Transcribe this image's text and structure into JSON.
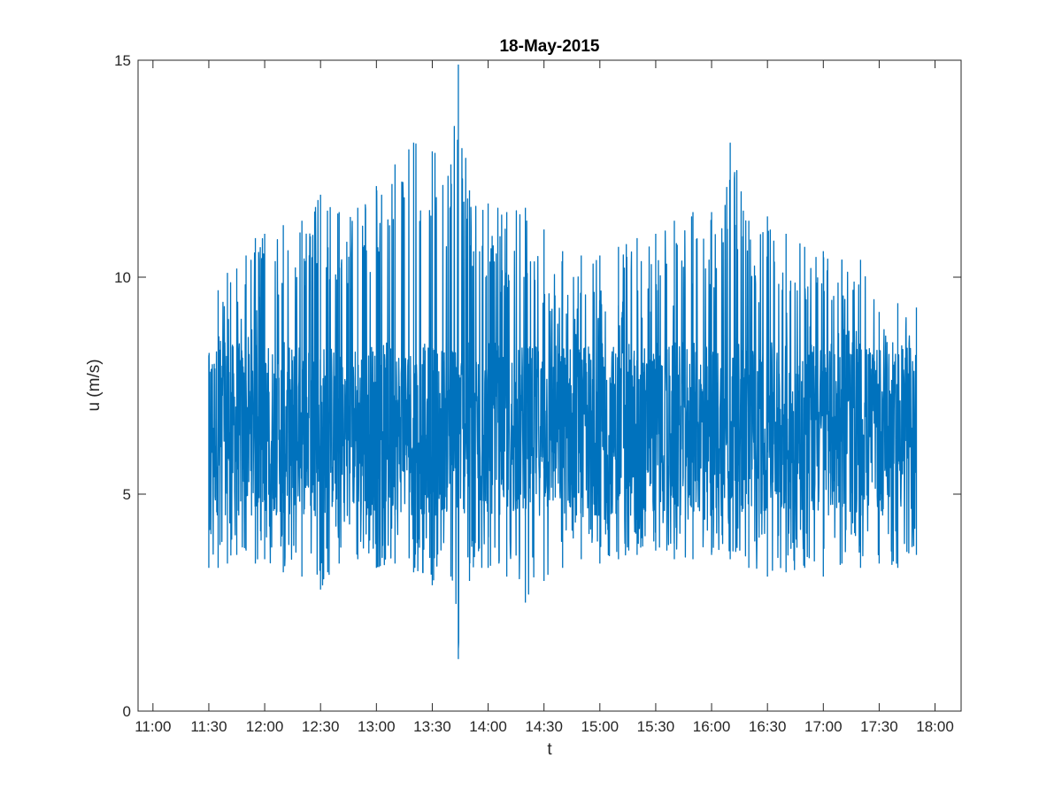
{
  "chart_data": {
    "type": "line",
    "title": "18-May-2015",
    "xlabel": "t",
    "ylabel": "u (m/s)",
    "xlim": [
      "10:52",
      "18:14"
    ],
    "ylim": [
      0,
      15
    ],
    "x_ticks": [
      "11:00",
      "11:30",
      "12:00",
      "12:30",
      "13:00",
      "13:30",
      "14:00",
      "14:30",
      "15:00",
      "15:30",
      "16:00",
      "16:30",
      "17:00",
      "17:30",
      "18:00"
    ],
    "y_ticks": [
      0,
      5,
      10,
      15
    ],
    "grid": false,
    "legend": "none",
    "series": [
      {
        "color": "#0072BD",
        "x_start": "11:30",
        "x_end": "17:50",
        "x": [
          "11:30",
          "11:35",
          "11:40",
          "11:45",
          "11:50",
          "11:55",
          "12:00",
          "12:10",
          "12:20",
          "12:30",
          "12:40",
          "12:50",
          "13:00",
          "13:10",
          "13:20",
          "13:30",
          "13:40",
          "13:44",
          "13:50",
          "14:00",
          "14:10",
          "14:20",
          "14:30",
          "14:40",
          "14:50",
          "15:00",
          "15:10",
          "15:20",
          "15:30",
          "15:40",
          "15:50",
          "16:00",
          "16:10",
          "16:20",
          "16:30",
          "16:40",
          "16:50",
          "17:00",
          "17:10",
          "17:20",
          "17:30",
          "17:40",
          "17:50"
        ],
        "envelope_max": [
          8.2,
          9.7,
          10.1,
          10.2,
          10.5,
          10.9,
          11.0,
          11.2,
          11.3,
          11.9,
          11.5,
          11.6,
          12.1,
          12.6,
          13.1,
          12.9,
          12.6,
          14.9,
          12.0,
          11.7,
          11.5,
          11.6,
          11.1,
          10.6,
          10.5,
          10.5,
          10.7,
          10.9,
          11.0,
          11.3,
          11.5,
          11.5,
          13.1,
          11.3,
          11.4,
          11.0,
          10.7,
          10.6,
          10.4,
          10.4,
          9.2,
          9.4,
          9.3
        ],
        "envelope_min": [
          3.3,
          3.3,
          3.4,
          3.6,
          3.7,
          3.4,
          3.5,
          3.2,
          3.1,
          2.8,
          3.4,
          3.5,
          3.3,
          3.4,
          3.2,
          2.9,
          3.1,
          1.2,
          3.0,
          3.3,
          3.1,
          2.5,
          3.0,
          3.3,
          3.5,
          3.4,
          3.5,
          3.6,
          3.7,
          3.5,
          3.5,
          3.6,
          3.5,
          3.3,
          3.1,
          3.2,
          3.3,
          3.1,
          3.4,
          3.3,
          3.4,
          3.3,
          3.6
        ],
        "typical_range": [
          4.5,
          8.5
        ]
      }
    ]
  }
}
